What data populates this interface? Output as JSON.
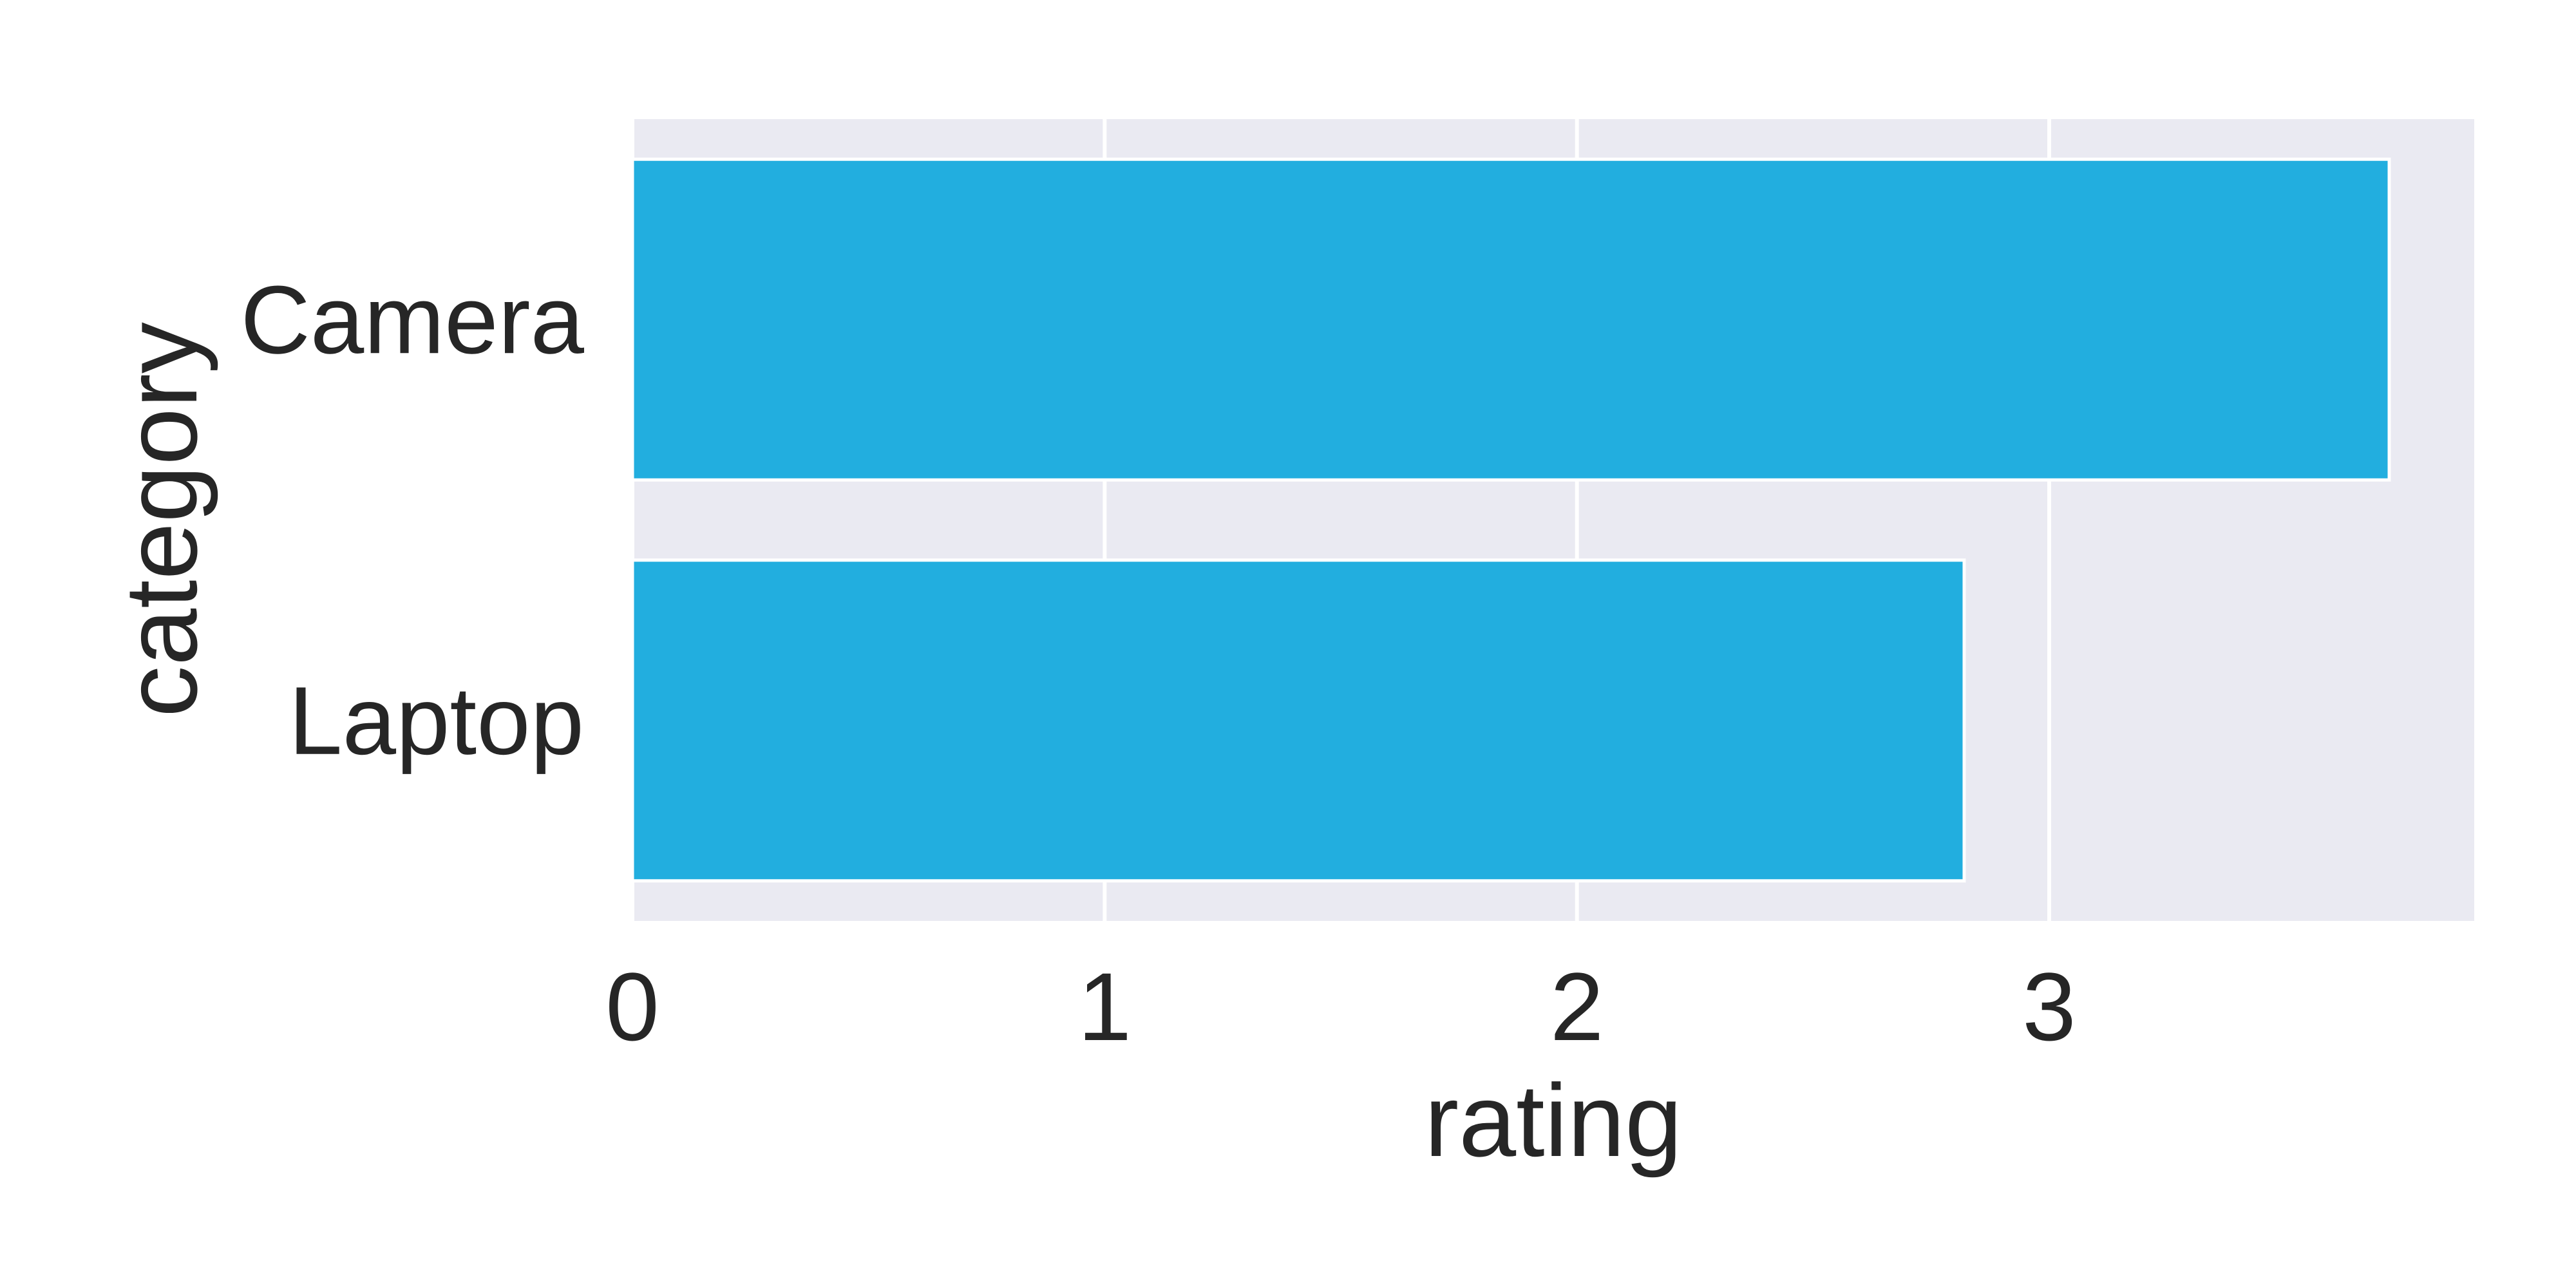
{
  "chart_data": {
    "type": "bar",
    "orientation": "horizontal",
    "categories": [
      "Camera",
      "Laptop"
    ],
    "values": [
      3.72,
      2.82
    ],
    "xlabel": "rating",
    "ylabel": "category",
    "xlim": [
      0,
      3.9
    ],
    "xticks": [
      "0",
      "1",
      "2",
      "3"
    ],
    "grid": true,
    "colors": {
      "bar": "#22AEDF",
      "plot_background": "#EAEAF2",
      "grid": "#FFFFFF",
      "text": "#262626"
    }
  }
}
